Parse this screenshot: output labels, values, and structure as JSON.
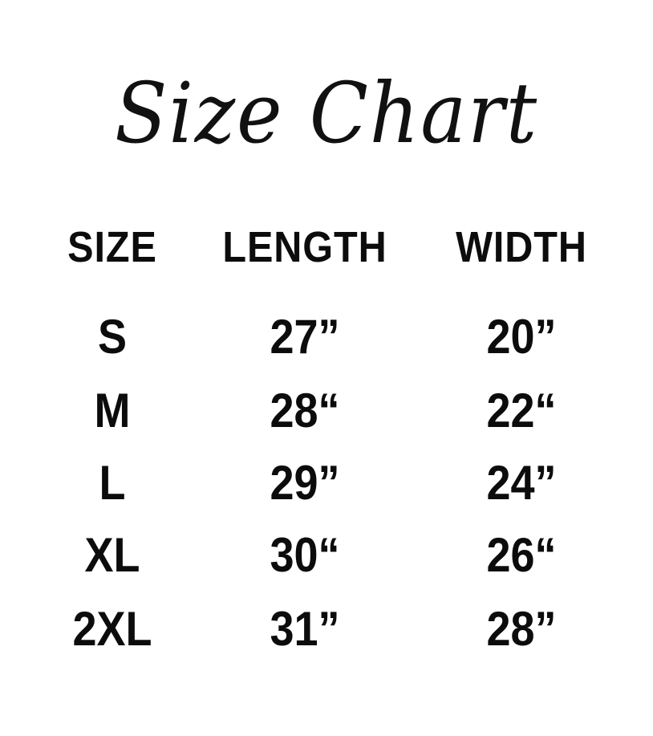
{
  "title": "Size Chart",
  "table": {
    "headers": [
      "SIZE",
      "LENGTH",
      "WIDTH"
    ],
    "rows": [
      {
        "size": "S",
        "length": "27”",
        "width": "20”"
      },
      {
        "size": "M",
        "length": "28“",
        "width": "22“"
      },
      {
        "size": "L",
        "length": "29”",
        "width": "24”"
      },
      {
        "size": "XL",
        "length": "30“",
        "width": "26“"
      },
      {
        "size": "2XL",
        "length": "31”",
        "width": "28”"
      }
    ]
  }
}
